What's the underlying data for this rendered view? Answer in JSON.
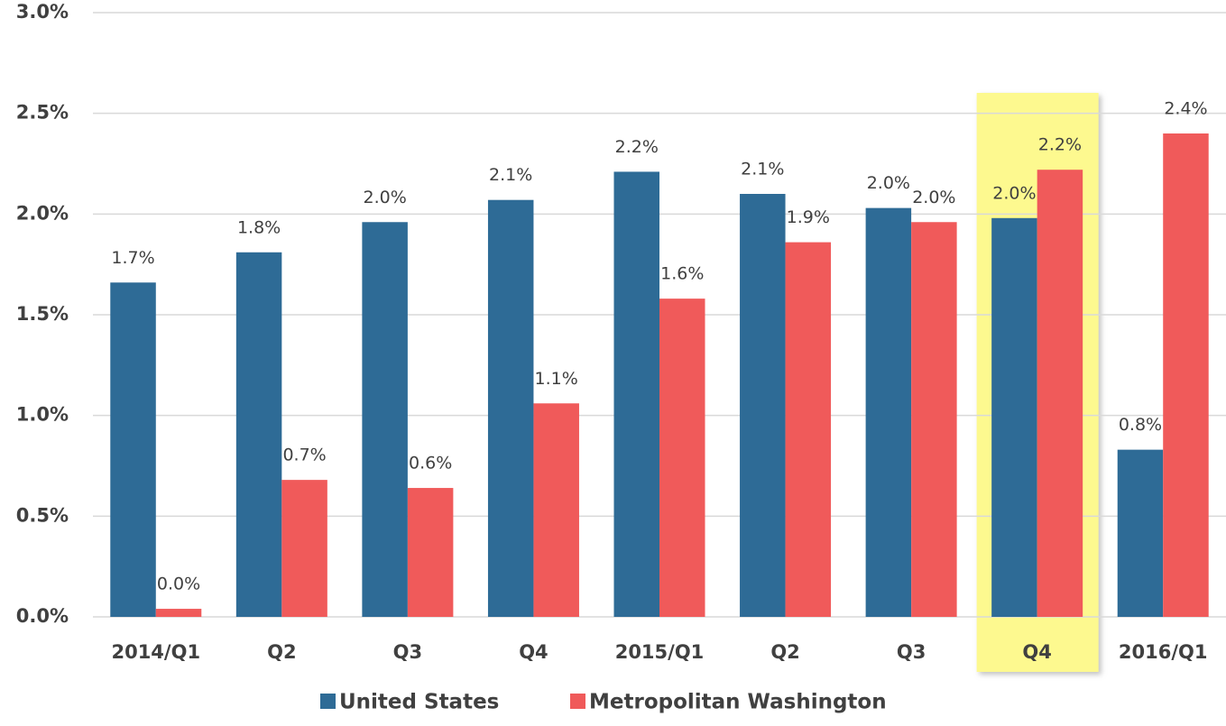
{
  "chart_data": {
    "type": "bar",
    "categories": [
      "2014/Q1",
      "Q2",
      "Q3",
      "Q4",
      "2015/Q1",
      "Q2",
      "Q3",
      "Q4",
      "2016/Q1"
    ],
    "series": [
      {
        "name": "United States",
        "color": "#2e6b96",
        "values": [
          1.66,
          1.81,
          1.96,
          2.07,
          2.21,
          2.1,
          2.03,
          1.98,
          0.83
        ],
        "value_labels": [
          "1.7%",
          "1.8%",
          "2.0%",
          "2.1%",
          "2.2%",
          "2.1%",
          "2.0%",
          "2.0%",
          "0.8%"
        ]
      },
      {
        "name": "Metropolitan Washington",
        "color": "#f05a5a",
        "values": [
          0.04,
          0.68,
          0.64,
          1.06,
          1.58,
          1.86,
          1.96,
          2.22,
          2.4
        ],
        "value_labels": [
          "0.0%",
          "0.7%",
          "0.6%",
          "1.1%",
          "1.6%",
          "1.9%",
          "2.0%",
          "2.2%",
          "2.4%"
        ]
      }
    ],
    "ylim": [
      0,
      3.0
    ],
    "yticks": [
      {
        "value": 0,
        "label": "0.0%"
      },
      {
        "value": 0.5,
        "label": "0.5%"
      },
      {
        "value": 1.0,
        "label": "1.0%"
      },
      {
        "value": 1.5,
        "label": "1.5%"
      },
      {
        "value": 2.0,
        "label": "2.0%"
      },
      {
        "value": 2.5,
        "label": "2.5%"
      },
      {
        "value": 3.0,
        "label": "3.0%"
      }
    ],
    "grid": true,
    "highlight_index": 7,
    "highlight_color": "#fdf98f",
    "legend": "bottom"
  }
}
